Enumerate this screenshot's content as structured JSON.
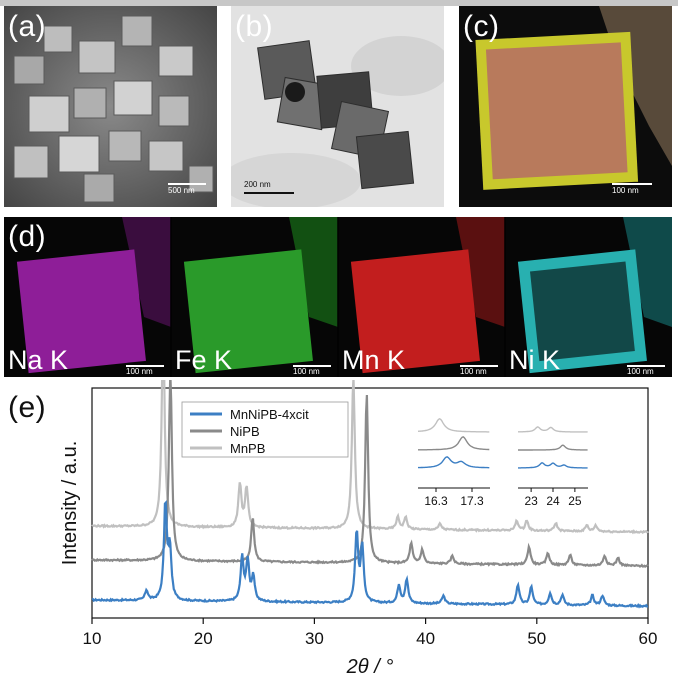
{
  "panels": {
    "a": {
      "label": "(a)",
      "scale": "500 nm"
    },
    "b": {
      "label": "(b)",
      "scale": "200 nm"
    },
    "c": {
      "label": "(c)",
      "scale": "100 nm"
    },
    "d": {
      "label": "(d)",
      "maps": [
        {
          "element": "Na K",
          "scale": "100 nm",
          "color": "#a020b0"
        },
        {
          "element": "Fe K",
          "scale": "100 nm",
          "color": "#2ea82e"
        },
        {
          "element": "Mn K",
          "scale": "100 nm",
          "color": "#d02020"
        },
        {
          "element": "Ni K",
          "scale": "100 nm",
          "color": "#20b5b5"
        }
      ]
    },
    "e": {
      "label": "(e)"
    }
  },
  "chart_data": {
    "type": "line",
    "xlabel": "2θ / °",
    "ylabel": "Intensity / a.u.",
    "xlim": [
      10,
      60
    ],
    "xticks": [
      "10",
      "20",
      "30",
      "40",
      "50",
      "60"
    ],
    "legend_position": "top-left",
    "series": [
      {
        "name": "MnNiPB-4xcit",
        "color": "#3c7fc4",
        "baseline": 0.0,
        "peaks": [
          [
            14.9,
            0.05
          ],
          [
            16.6,
            0.48
          ],
          [
            17.0,
            0.25
          ],
          [
            23.5,
            0.22
          ],
          [
            24.0,
            0.2
          ],
          [
            24.5,
            0.12
          ],
          [
            33.8,
            0.35
          ],
          [
            34.3,
            0.28
          ],
          [
            37.6,
            0.09
          ],
          [
            38.3,
            0.12
          ],
          [
            41.6,
            0.04
          ],
          [
            48.3,
            0.1
          ],
          [
            49.5,
            0.09
          ],
          [
            51.2,
            0.06
          ],
          [
            52.3,
            0.05
          ],
          [
            55.0,
            0.05
          ],
          [
            55.9,
            0.05
          ]
        ]
      },
      {
        "name": "NiPB",
        "color": "#8a8a8a",
        "baseline": 0.2,
        "peaks": [
          [
            17.05,
            0.95
          ],
          [
            24.45,
            0.22
          ],
          [
            34.7,
            0.85
          ],
          [
            38.7,
            0.1
          ],
          [
            39.7,
            0.07
          ],
          [
            42.4,
            0.04
          ],
          [
            49.3,
            0.09
          ],
          [
            51.0,
            0.06
          ],
          [
            53.0,
            0.05
          ],
          [
            56.1,
            0.05
          ],
          [
            57.3,
            0.04
          ]
        ]
      },
      {
        "name": "MnPB",
        "color": "#c0c0c0",
        "baseline": 0.37,
        "peaks": [
          [
            16.4,
            1.0
          ],
          [
            23.3,
            0.22
          ],
          [
            23.9,
            0.2
          ],
          [
            33.5,
            0.77
          ],
          [
            37.5,
            0.06
          ],
          [
            38.2,
            0.06
          ],
          [
            41.3,
            0.03
          ],
          [
            48.2,
            0.05
          ],
          [
            49.1,
            0.05
          ],
          [
            51.7,
            0.04
          ],
          [
            54.5,
            0.03
          ],
          [
            55.3,
            0.03
          ]
        ]
      }
    ],
    "insets": [
      {
        "xticks": [
          "16.3",
          "17.3"
        ]
      },
      {
        "xticks": [
          "23",
          "24",
          "25"
        ]
      }
    ]
  }
}
